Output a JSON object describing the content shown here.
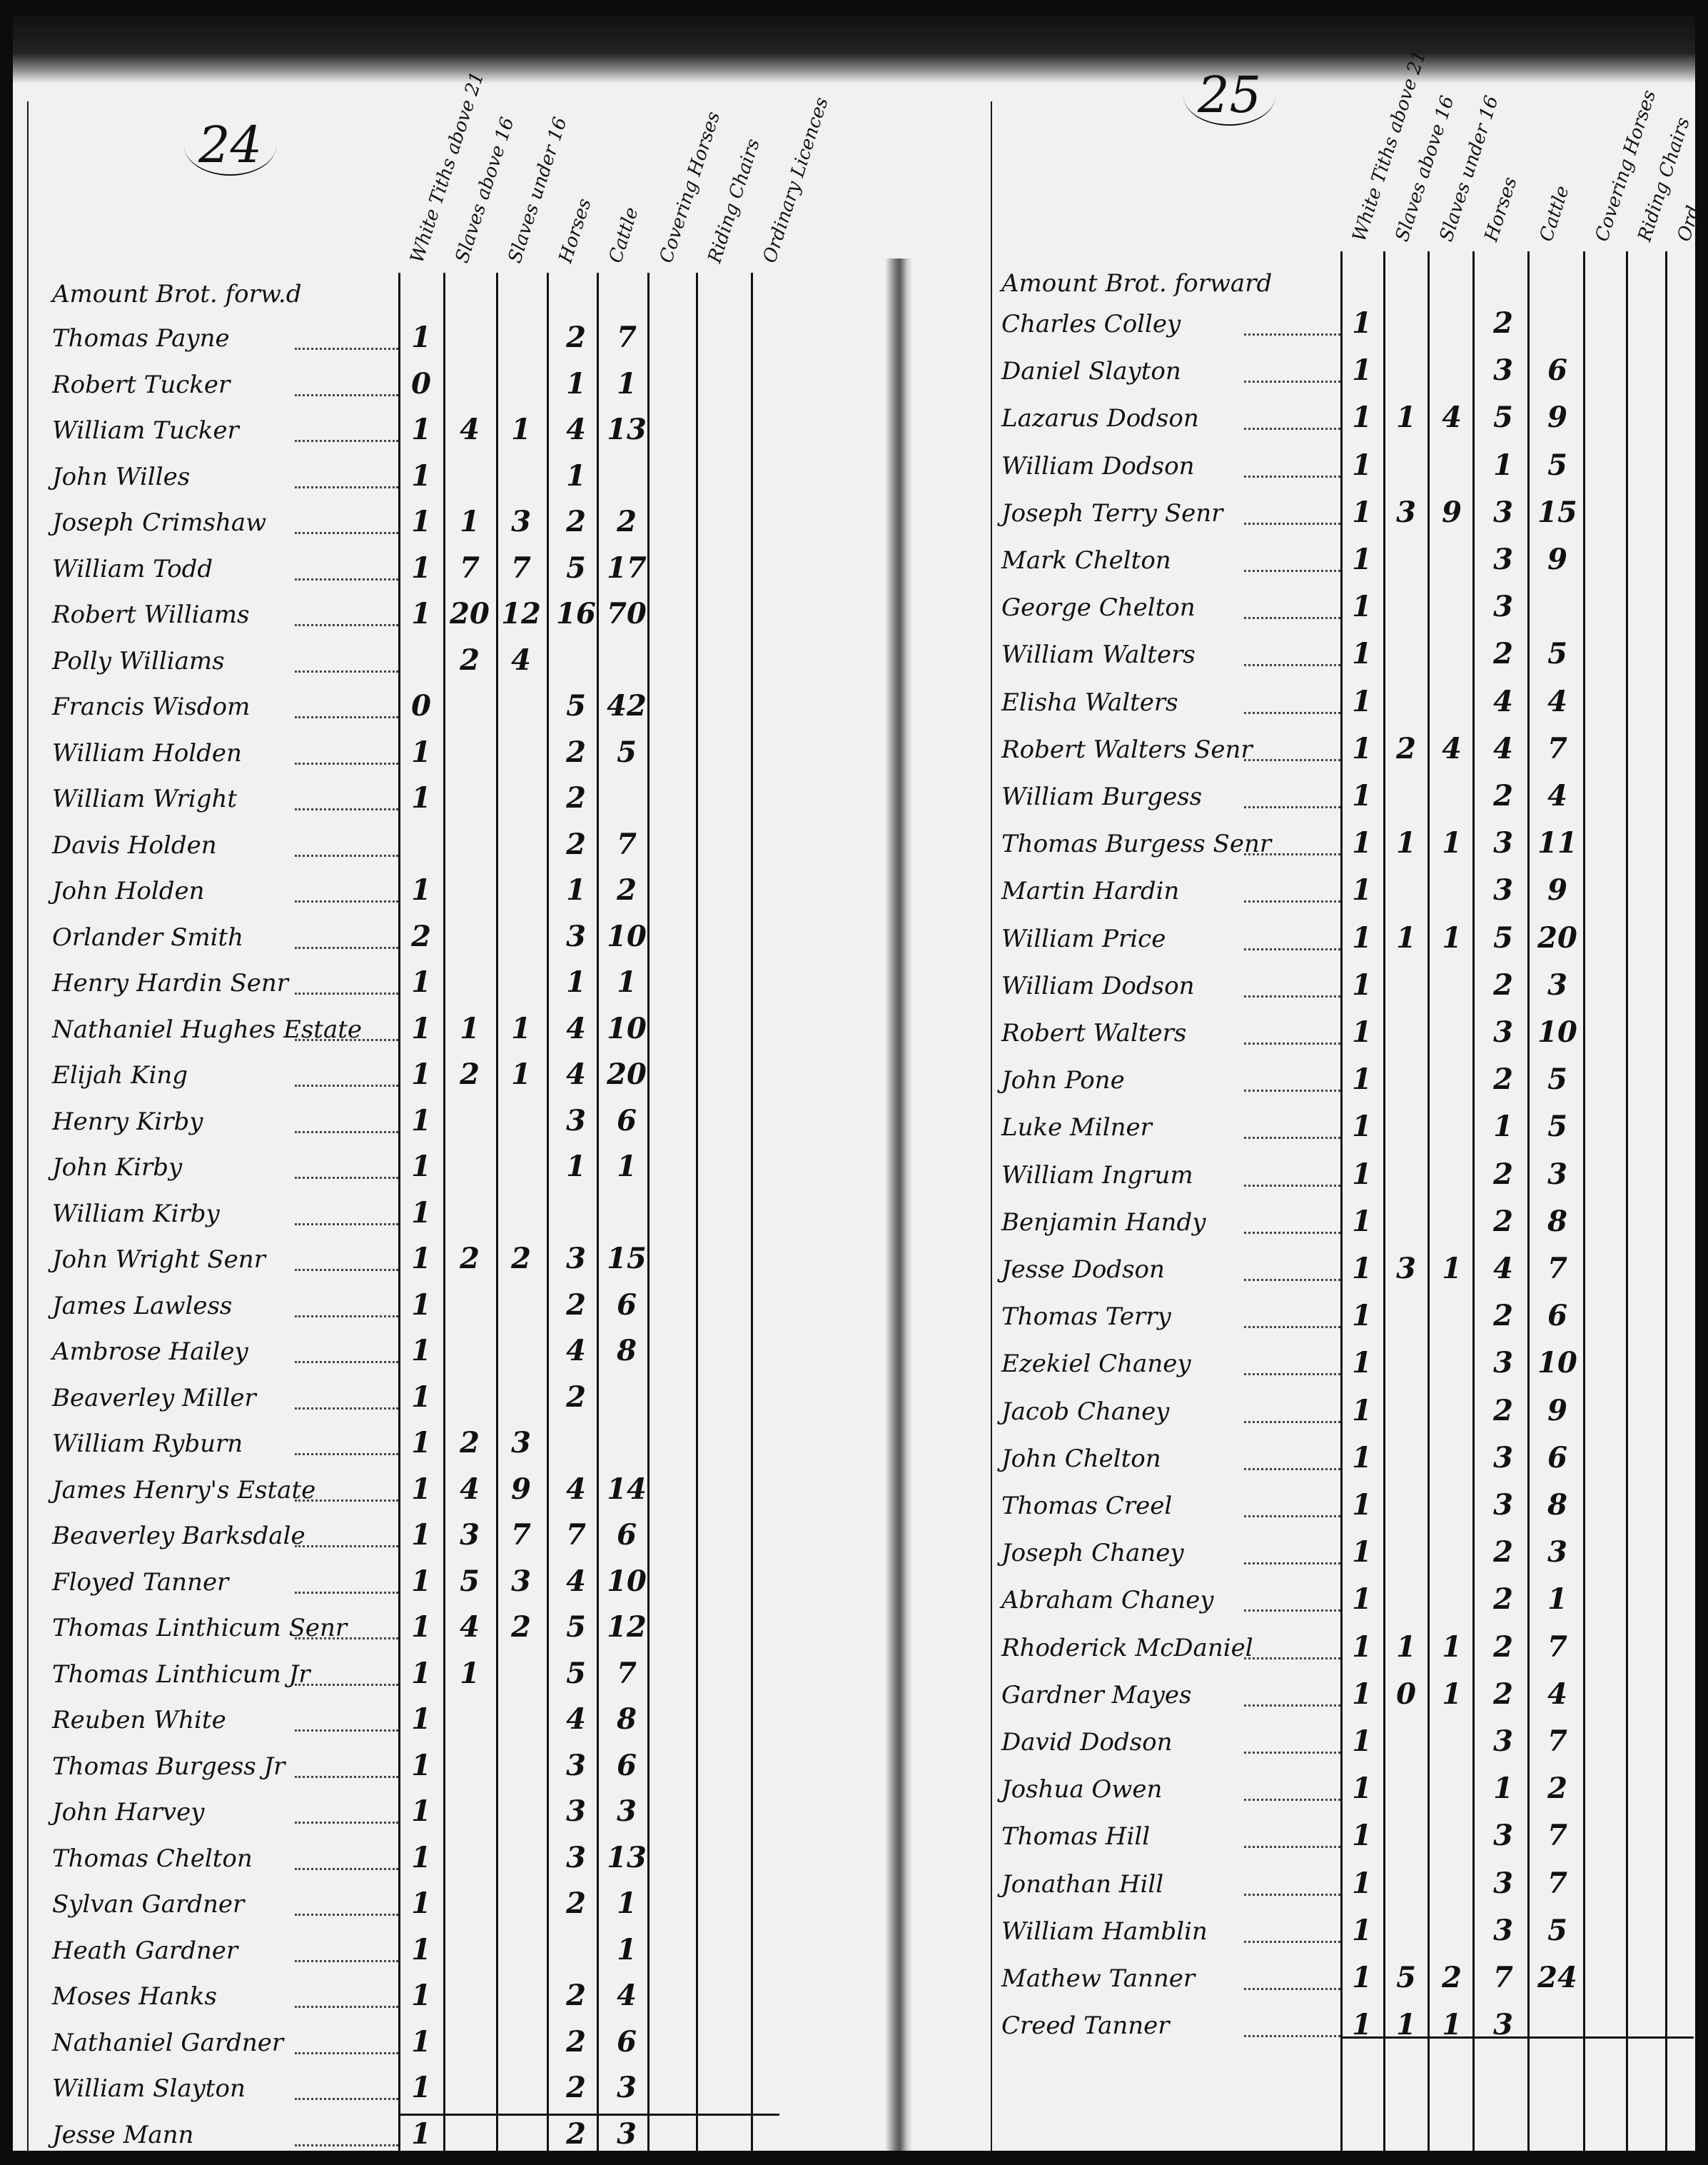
{
  "columns": {
    "left": [
      "White Tiths above 21",
      "Slaves above 16",
      "Slaves under 16",
      "Horses",
      "Cattle",
      "Covering Horses",
      "Riding Chairs",
      "Ordinary Licences"
    ],
    "right": [
      "White Tiths above 21",
      "Slaves above 16",
      "Slaves under 16",
      "Horses",
      "Cattle",
      "Covering Horses",
      "Riding Chairs",
      "Ord"
    ]
  },
  "left_page": {
    "page_number": "24",
    "carried_label": "Amount Brot. forw.d",
    "rows": [
      [
        "Thomas Payne",
        "1",
        "",
        "",
        "2",
        "7"
      ],
      [
        "Robert Tucker",
        "0",
        "",
        "",
        "1",
        "1"
      ],
      [
        "William Tucker",
        "1",
        "4",
        "1",
        "4",
        "13"
      ],
      [
        "John Willes",
        "1",
        "",
        "",
        "1",
        ""
      ],
      [
        "Joseph Crimshaw",
        "1",
        "1",
        "3",
        "2",
        "2"
      ],
      [
        "William Todd",
        "1",
        "7",
        "7",
        "5",
        "17"
      ],
      [
        "Robert Williams",
        "1",
        "20",
        "12",
        "16",
        "70"
      ],
      [
        "Polly Williams",
        "",
        "2",
        "4",
        "",
        ""
      ],
      [
        "Francis Wisdom",
        "0",
        "",
        "",
        "5",
        "42"
      ],
      [
        "William Holden",
        "1",
        "",
        "",
        "2",
        "5"
      ],
      [
        "William Wright",
        "1",
        "",
        "",
        "2",
        ""
      ],
      [
        "Davis Holden",
        "",
        "",
        "",
        "2",
        "7"
      ],
      [
        "John Holden",
        "1",
        "",
        "",
        "1",
        "2"
      ],
      [
        "Orlander Smith",
        "2",
        "",
        "",
        "3",
        "10"
      ],
      [
        "Henry Hardin Senr",
        "1",
        "",
        "",
        "1",
        "1"
      ],
      [
        "Nathaniel Hughes Estate",
        "1",
        "1",
        "1",
        "4",
        "10"
      ],
      [
        "Elijah King",
        "1",
        "2",
        "1",
        "4",
        "20"
      ],
      [
        "Henry Kirby",
        "1",
        "",
        "",
        "3",
        "6"
      ],
      [
        "John Kirby",
        "1",
        "",
        "",
        "1",
        "1"
      ],
      [
        "William Kirby",
        "1",
        "",
        "",
        "",
        ""
      ],
      [
        "John Wright Senr",
        "1",
        "2",
        "2",
        "3",
        "15"
      ],
      [
        "James Lawless",
        "1",
        "",
        "",
        "2",
        "6"
      ],
      [
        "Ambrose Hailey",
        "1",
        "",
        "",
        "4",
        "8"
      ],
      [
        "Beaverley Miller",
        "1",
        "",
        "",
        "2",
        ""
      ],
      [
        "William Ryburn",
        "1",
        "2",
        "3",
        "",
        ""
      ],
      [
        "James Henry's Estate",
        "1",
        "4",
        "9",
        "4",
        "14"
      ],
      [
        "Beaverley Barksdale",
        "1",
        "3",
        "7",
        "7",
        "6"
      ],
      [
        "Floyed Tanner",
        "1",
        "5",
        "3",
        "4",
        "10"
      ],
      [
        "Thomas Linthicum Senr",
        "1",
        "4",
        "2",
        "5",
        "12"
      ],
      [
        "Thomas Linthicum Jr",
        "1",
        "1",
        "",
        "5",
        "7"
      ],
      [
        "Reuben White",
        "1",
        "",
        "",
        "4",
        "8"
      ],
      [
        "Thomas Burgess Jr",
        "1",
        "",
        "",
        "3",
        "6"
      ],
      [
        "John Harvey",
        "1",
        "",
        "",
        "3",
        "3"
      ],
      [
        "Thomas Chelton",
        "1",
        "",
        "",
        "3",
        "13"
      ],
      [
        "Sylvan Gardner",
        "1",
        "",
        "",
        "2",
        "1"
      ],
      [
        "Heath Gardner",
        "1",
        "",
        "",
        "",
        "1"
      ],
      [
        "Moses Hanks",
        "1",
        "",
        "",
        "2",
        "4"
      ],
      [
        "Nathaniel Gardner",
        "1",
        "",
        "",
        "2",
        "6"
      ],
      [
        "William Slayton",
        "1",
        "",
        "",
        "2",
        "3"
      ],
      [
        "Jesse Mann",
        "1",
        "",
        "",
        "2",
        "3"
      ]
    ]
  },
  "right_page": {
    "page_number": "25",
    "carried_label": "Amount Brot. forward",
    "rows": [
      [
        "Charles Colley",
        "1",
        "",
        "",
        "2",
        ""
      ],
      [
        "Daniel Slayton",
        "1",
        "",
        "",
        "3",
        "6"
      ],
      [
        "Lazarus Dodson",
        "1",
        "1",
        "4",
        "5",
        "9"
      ],
      [
        "William Dodson",
        "1",
        "",
        "",
        "1",
        "5"
      ],
      [
        "Joseph Terry Senr",
        "1",
        "3",
        "9",
        "3",
        "15"
      ],
      [
        "Mark Chelton",
        "1",
        "",
        "",
        "3",
        "9"
      ],
      [
        "George Chelton",
        "1",
        "",
        "",
        "3",
        ""
      ],
      [
        "William Walters",
        "1",
        "",
        "",
        "2",
        "5"
      ],
      [
        "Elisha Walters",
        "1",
        "",
        "",
        "4",
        "4"
      ],
      [
        "Robert Walters Senr",
        "1",
        "2",
        "4",
        "4",
        "7"
      ],
      [
        "William Burgess",
        "1",
        "",
        "",
        "2",
        "4"
      ],
      [
        "Thomas Burgess Senr",
        "1",
        "1",
        "1",
        "3",
        "11"
      ],
      [
        "Martin Hardin",
        "1",
        "",
        "",
        "3",
        "9"
      ],
      [
        "William Price",
        "1",
        "1",
        "1",
        "5",
        "20"
      ],
      [
        "William Dodson",
        "1",
        "",
        "",
        "2",
        "3"
      ],
      [
        "Robert Walters",
        "1",
        "",
        "",
        "3",
        "10"
      ],
      [
        "John Pone",
        "1",
        "",
        "",
        "2",
        "5"
      ],
      [
        "Luke Milner",
        "1",
        "",
        "",
        "1",
        "5"
      ],
      [
        "William Ingrum",
        "1",
        "",
        "",
        "2",
        "3"
      ],
      [
        "Benjamin Handy",
        "1",
        "",
        "",
        "2",
        "8"
      ],
      [
        "Jesse Dodson",
        "1",
        "3",
        "1",
        "4",
        "7"
      ],
      [
        "Thomas Terry",
        "1",
        "",
        "",
        "2",
        "6"
      ],
      [
        "Ezekiel Chaney",
        "1",
        "",
        "",
        "3",
        "10"
      ],
      [
        "Jacob Chaney",
        "1",
        "",
        "",
        "2",
        "9"
      ],
      [
        "John Chelton",
        "1",
        "",
        "",
        "3",
        "6"
      ],
      [
        "Thomas Creel",
        "1",
        "",
        "",
        "3",
        "8"
      ],
      [
        "Joseph Chaney",
        "1",
        "",
        "",
        "2",
        "3"
      ],
      [
        "Abraham Chaney",
        "1",
        "",
        "",
        "2",
        "1"
      ],
      [
        "Rhoderick McDaniel",
        "1",
        "1",
        "1",
        "2",
        "7"
      ],
      [
        "Gardner Mayes",
        "1",
        "0",
        "1",
        "2",
        "4"
      ],
      [
        "David Dodson",
        "1",
        "",
        "",
        "3",
        "7"
      ],
      [
        "Joshua Owen",
        "1",
        "",
        "",
        "1",
        "2"
      ],
      [
        "Thomas Hill",
        "1",
        "",
        "",
        "3",
        "7"
      ],
      [
        "Jonathan Hill",
        "1",
        "",
        "",
        "3",
        "7"
      ],
      [
        "William Hamblin",
        "1",
        "",
        "",
        "3",
        "5"
      ],
      [
        "Mathew Tanner",
        "1",
        "5",
        "2",
        "7",
        "24"
      ],
      [
        "Creed Tanner",
        "1",
        "1",
        "1",
        "3",
        ""
      ]
    ]
  }
}
